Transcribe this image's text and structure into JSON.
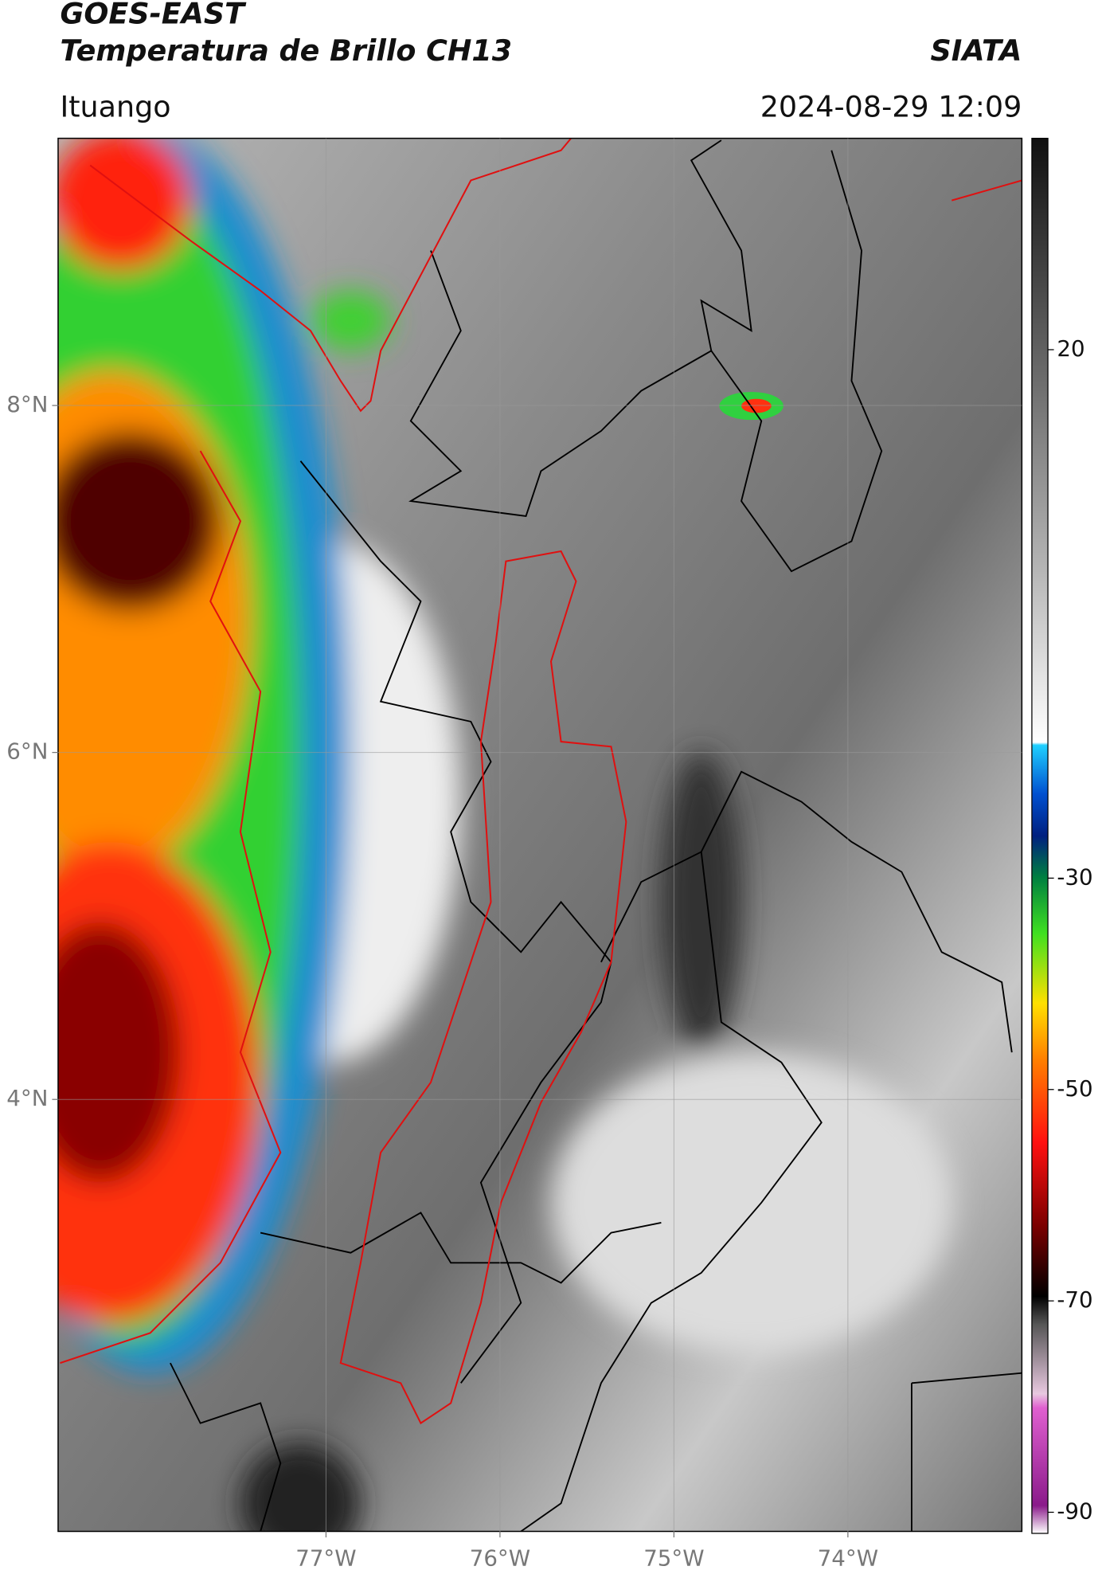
{
  "chart_data": {
    "type": "map",
    "title": "GOES-EAST",
    "subtitle": "Temperatura de Brillo CH13",
    "source": "SIATA",
    "location": "Ituango",
    "timestamp": "2024-08-29 12:09",
    "xlim": [
      -78.54,
      -73.0
    ],
    "ylim": [
      1.51,
      9.54
    ],
    "xticks": [
      {
        "value": -77,
        "label": "77°W"
      },
      {
        "value": -76,
        "label": "76°W"
      },
      {
        "value": -75,
        "label": "75°W"
      },
      {
        "value": -74,
        "label": "74°W"
      }
    ],
    "yticks": [
      {
        "value": 4,
        "label": "4°N"
      },
      {
        "value": 6,
        "label": "6°N"
      },
      {
        "value": 8,
        "label": "8°N"
      }
    ],
    "grid": true,
    "colorbar": {
      "lim": [
        -92,
        40
      ],
      "ticks": [
        -90,
        -70,
        -50,
        -30,
        20
      ]
    }
  }
}
